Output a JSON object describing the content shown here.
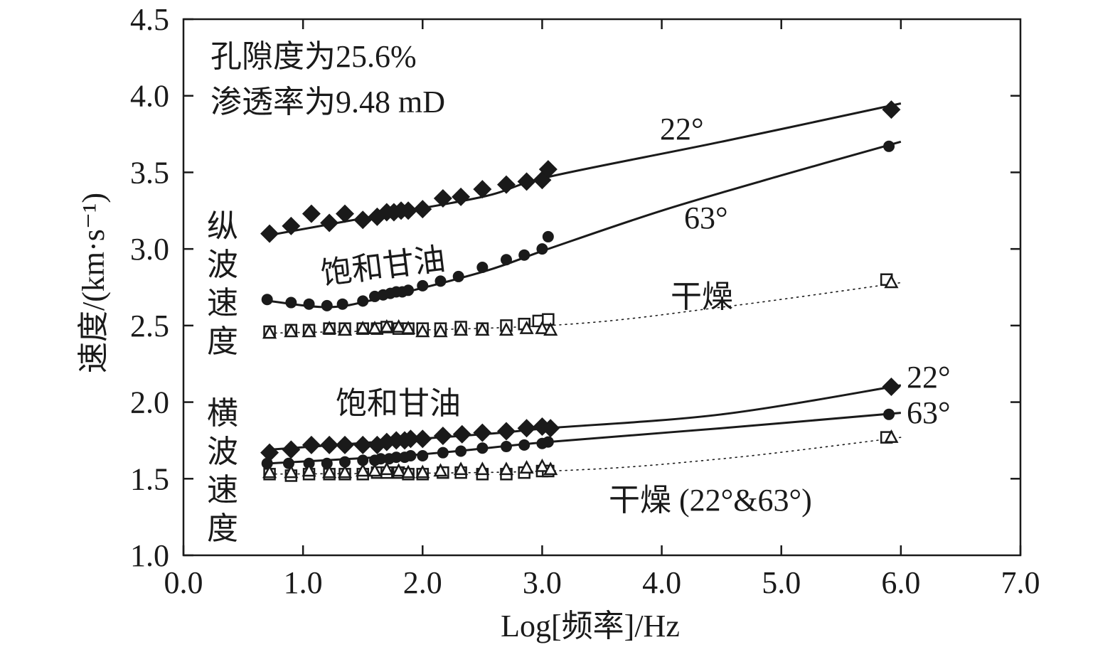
{
  "chart_data": {
    "type": "scatter",
    "xlabel": "Log[频率]/Hz",
    "ylabel": "速度/(km·s⁻¹)",
    "xlim": [
      0,
      7
    ],
    "ylim": [
      1.0,
      4.5
    ],
    "x_ticks": [
      "0.0",
      "1.0",
      "2.0",
      "3.0",
      "4.0",
      "5.0",
      "6.0",
      "7.0"
    ],
    "y_ticks": [
      "1.0",
      "1.5",
      "2.0",
      "2.5",
      "3.0",
      "3.5",
      "4.0",
      "4.5"
    ],
    "grid": false,
    "annotations": {
      "porosity": "孔隙度为25.6%",
      "permeability": "渗透率为9.48 mD",
      "p_label": "纵\n波\n速\n度",
      "s_label": "横\n波\n速\n度",
      "p_saturated": "饱和甘油",
      "s_saturated": "饱和甘油",
      "p_dry": "干燥",
      "s_dry": "干燥 (22°&63°)",
      "p22": "22°",
      "p63": "63°",
      "s22": "22°",
      "s63": "63°"
    },
    "series": [
      {
        "group": "P",
        "angle": "22°",
        "marker": "diamond",
        "filled": true,
        "line": "solid",
        "x": [
          0.72,
          0.9,
          1.07,
          1.22,
          1.35,
          1.5,
          1.62,
          1.7,
          1.76,
          1.82,
          1.88,
          2.0,
          2.17,
          2.32,
          2.5,
          2.7,
          2.87,
          3.0,
          3.05,
          5.92
        ],
        "y": [
          3.1,
          3.15,
          3.23,
          3.17,
          3.23,
          3.19,
          3.21,
          3.24,
          3.24,
          3.25,
          3.25,
          3.26,
          3.33,
          3.34,
          3.39,
          3.42,
          3.44,
          3.45,
          3.52,
          3.91
        ],
        "fit": [
          [
            0.72,
            3.09
          ],
          [
            1.5,
            3.2
          ],
          [
            2.5,
            3.34
          ],
          [
            3.05,
            3.47
          ],
          [
            4.5,
            3.7
          ],
          [
            6.0,
            3.95
          ]
        ]
      },
      {
        "group": "P",
        "angle": "63°",
        "marker": "circle",
        "filled": true,
        "line": "solid",
        "x": [
          0.7,
          0.9,
          1.05,
          1.2,
          1.33,
          1.5,
          1.6,
          1.67,
          1.73,
          1.78,
          1.83,
          1.88,
          2.0,
          2.15,
          2.3,
          2.5,
          2.7,
          2.85,
          3.0,
          3.05,
          5.9
        ],
        "y": [
          2.67,
          2.65,
          2.64,
          2.63,
          2.64,
          2.66,
          2.69,
          2.7,
          2.71,
          2.72,
          2.72,
          2.73,
          2.76,
          2.79,
          2.82,
          2.88,
          2.93,
          2.96,
          3.0,
          3.08,
          3.67
        ],
        "fit": [
          [
            0.72,
            2.66
          ],
          [
            1.2,
            2.62
          ],
          [
            1.6,
            2.67
          ],
          [
            2.5,
            2.85
          ],
          [
            3.05,
            3.0
          ],
          [
            4.0,
            3.25
          ],
          [
            5.0,
            3.48
          ],
          [
            6.0,
            3.7
          ]
        ]
      },
      {
        "group": "P",
        "angle": "22°",
        "marker": "square",
        "filled": false,
        "line": "dotted",
        "x": [
          0.72,
          0.9,
          1.05,
          1.22,
          1.35,
          1.5,
          1.62,
          1.7,
          1.8,
          1.88,
          2.0,
          2.15,
          2.32,
          2.5,
          2.7,
          2.85,
          2.97,
          3.05,
          5.88
        ],
        "y": [
          2.46,
          2.47,
          2.47,
          2.48,
          2.48,
          2.48,
          2.48,
          2.49,
          2.48,
          2.48,
          2.48,
          2.48,
          2.49,
          2.48,
          2.5,
          2.51,
          2.53,
          2.54,
          2.8
        ],
        "fit": [
          [
            0.72,
            2.45
          ],
          [
            3.05,
            2.5
          ],
          [
            4.5,
            2.62
          ],
          [
            6.0,
            2.78
          ]
        ]
      },
      {
        "group": "P",
        "angle": "63°",
        "marker": "triangle",
        "filled": false,
        "line": "dotted",
        "x": [
          0.72,
          0.9,
          1.05,
          1.22,
          1.35,
          1.5,
          1.6,
          1.7,
          1.8,
          1.88,
          2.0,
          2.15,
          2.32,
          2.5,
          2.7,
          2.87,
          3.0,
          3.07,
          5.92
        ],
        "y": [
          2.45,
          2.46,
          2.46,
          2.48,
          2.47,
          2.48,
          2.48,
          2.49,
          2.49,
          2.48,
          2.46,
          2.46,
          2.47,
          2.47,
          2.47,
          2.48,
          2.48,
          2.47,
          2.78
        ]
      },
      {
        "group": "S",
        "angle": "22°",
        "marker": "diamond",
        "filled": true,
        "line": "solid",
        "x": [
          0.72,
          0.9,
          1.07,
          1.22,
          1.35,
          1.5,
          1.62,
          1.7,
          1.78,
          1.85,
          1.9,
          2.0,
          2.17,
          2.33,
          2.5,
          2.7,
          2.87,
          3.0,
          3.07,
          5.92
        ],
        "y": [
          1.67,
          1.69,
          1.72,
          1.72,
          1.72,
          1.72,
          1.72,
          1.74,
          1.75,
          1.75,
          1.76,
          1.76,
          1.78,
          1.79,
          1.8,
          1.81,
          1.83,
          1.84,
          1.83,
          2.1
        ],
        "fit": [
          [
            0.72,
            1.69
          ],
          [
            2.5,
            1.79
          ],
          [
            3.05,
            1.83
          ],
          [
            4.5,
            1.92
          ],
          [
            6.0,
            2.11
          ]
        ]
      },
      {
        "group": "S",
        "angle": "63°",
        "marker": "circle",
        "filled": true,
        "line": "solid",
        "x": [
          0.7,
          0.88,
          1.05,
          1.2,
          1.35,
          1.5,
          1.6,
          1.65,
          1.72,
          1.78,
          1.85,
          1.9,
          2.0,
          2.17,
          2.32,
          2.5,
          2.7,
          2.85,
          3.0,
          3.05,
          5.9
        ],
        "y": [
          1.6,
          1.6,
          1.6,
          1.6,
          1.61,
          1.62,
          1.62,
          1.63,
          1.63,
          1.64,
          1.64,
          1.65,
          1.65,
          1.67,
          1.68,
          1.7,
          1.71,
          1.72,
          1.73,
          1.74,
          1.92
        ],
        "fit": [
          [
            0.72,
            1.6
          ],
          [
            2.0,
            1.66
          ],
          [
            3.05,
            1.74
          ],
          [
            4.5,
            1.83
          ],
          [
            6.0,
            1.93
          ]
        ]
      },
      {
        "group": "S",
        "angle": "22°",
        "marker": "square",
        "filled": false,
        "line": "dotted",
        "x": [
          0.72,
          0.9,
          1.05,
          1.22,
          1.35,
          1.5,
          1.62,
          1.7,
          1.8,
          1.88,
          2.0,
          2.17,
          2.32,
          2.5,
          2.7,
          2.85,
          3.0,
          3.05,
          5.88
        ],
        "y": [
          1.53,
          1.52,
          1.53,
          1.53,
          1.53,
          1.53,
          1.54,
          1.54,
          1.54,
          1.53,
          1.53,
          1.54,
          1.54,
          1.53,
          1.53,
          1.54,
          1.55,
          1.55,
          1.77
        ],
        "fit": [
          [
            0.72,
            1.53
          ],
          [
            3.05,
            1.55
          ],
          [
            4.5,
            1.63
          ],
          [
            6.0,
            1.77
          ]
        ]
      },
      {
        "group": "S",
        "angle": "63°",
        "marker": "triangle",
        "filled": false,
        "line": "dotted",
        "x": [
          0.72,
          0.9,
          1.05,
          1.22,
          1.35,
          1.5,
          1.6,
          1.7,
          1.8,
          1.88,
          2.0,
          2.15,
          2.32,
          2.5,
          2.7,
          2.87,
          3.0,
          3.07,
          5.92
        ],
        "y": [
          1.54,
          1.54,
          1.55,
          1.54,
          1.54,
          1.55,
          1.55,
          1.56,
          1.55,
          1.54,
          1.54,
          1.55,
          1.56,
          1.56,
          1.56,
          1.57,
          1.58,
          1.56,
          1.77
        ]
      }
    ]
  }
}
